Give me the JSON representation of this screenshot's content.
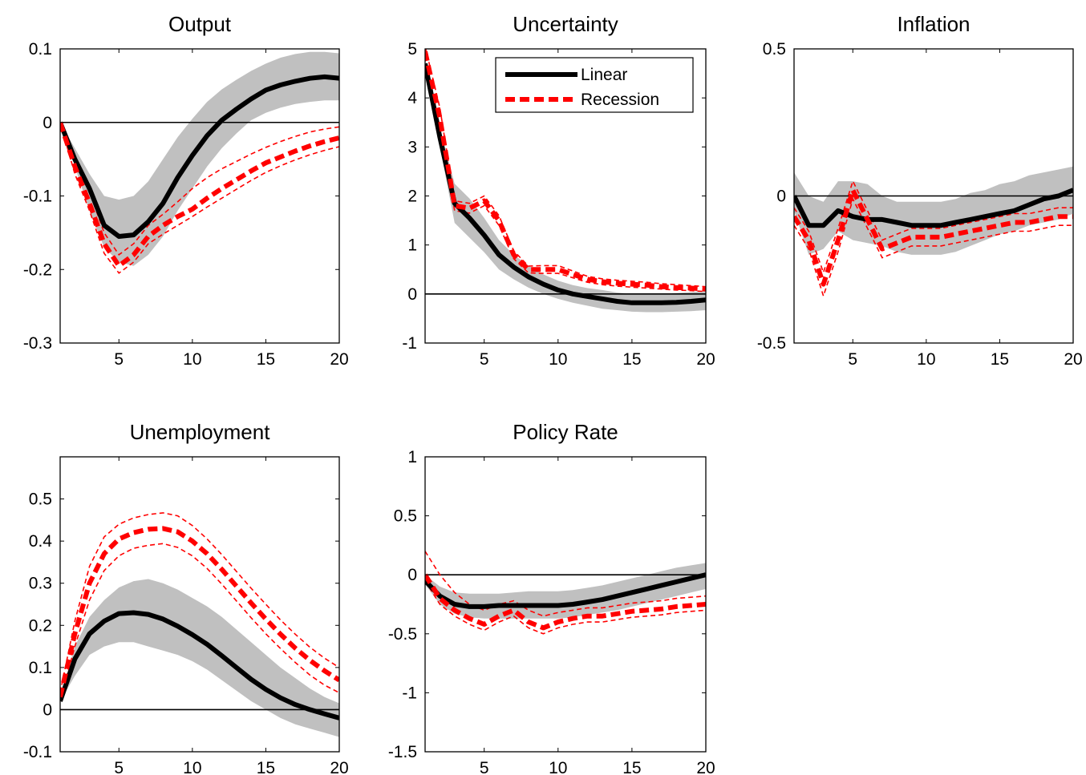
{
  "figure": {
    "legend_labels": [
      "Linear",
      "Recession"
    ],
    "colors": {
      "band": "#c0c0c0",
      "linear": "#000000",
      "recession": "#ff0000"
    }
  },
  "chart_data": [
    {
      "type": "line",
      "title": "Output",
      "x": [
        1,
        2,
        3,
        4,
        5,
        6,
        7,
        8,
        9,
        10,
        11,
        12,
        13,
        14,
        15,
        16,
        17,
        18,
        19,
        20
      ],
      "xlim": [
        1,
        20
      ],
      "ylim": [
        -0.3,
        0.1
      ],
      "xticks": [
        5,
        10,
        15,
        20
      ],
      "yticks": [
        -0.3,
        -0.2,
        -0.1,
        0,
        0.1
      ],
      "ytick_labels": [
        "-0.3",
        "-0.2",
        "-0.1",
        "0",
        "0.1"
      ],
      "legend": false,
      "series": [
        {
          "name": "Linear",
          "style": "solid",
          "values": [
            0.0,
            -0.05,
            -0.09,
            -0.14,
            -0.155,
            -0.153,
            -0.135,
            -0.11,
            -0.075,
            -0.045,
            -0.018,
            0.003,
            0.018,
            0.032,
            0.044,
            0.051,
            0.056,
            0.06,
            0.062,
            0.06
          ],
          "band_lower": [
            0.0,
            -0.06,
            -0.12,
            -0.17,
            -0.19,
            -0.195,
            -0.18,
            -0.155,
            -0.12,
            -0.09,
            -0.06,
            -0.035,
            -0.015,
            0.003,
            0.013,
            0.02,
            0.025,
            0.028,
            0.03,
            0.03
          ],
          "band_upper": [
            0.0,
            -0.035,
            -0.07,
            -0.1,
            -0.105,
            -0.1,
            -0.08,
            -0.05,
            -0.02,
            0.005,
            0.028,
            0.045,
            0.058,
            0.07,
            0.08,
            0.088,
            0.093,
            0.096,
            0.096,
            0.094
          ]
        },
        {
          "name": "Recession",
          "style": "dashed",
          "values": [
            0.0,
            -0.06,
            -0.11,
            -0.165,
            -0.195,
            -0.18,
            -0.155,
            -0.14,
            -0.128,
            -0.118,
            -0.103,
            -0.09,
            -0.078,
            -0.066,
            -0.055,
            -0.047,
            -0.039,
            -0.032,
            -0.026,
            -0.021
          ],
          "band_lower": [
            0.0,
            -0.07,
            -0.12,
            -0.178,
            -0.205,
            -0.19,
            -0.165,
            -0.152,
            -0.14,
            -0.128,
            -0.115,
            -0.103,
            -0.091,
            -0.079,
            -0.068,
            -0.059,
            -0.051,
            -0.044,
            -0.038,
            -0.033
          ],
          "band_upper": [
            0.0,
            -0.05,
            -0.095,
            -0.15,
            -0.18,
            -0.165,
            -0.14,
            -0.125,
            -0.108,
            -0.09,
            -0.075,
            -0.063,
            -0.053,
            -0.043,
            -0.034,
            -0.026,
            -0.019,
            -0.013,
            -0.009,
            -0.006
          ]
        }
      ]
    },
    {
      "type": "line",
      "title": "Uncertainty",
      "x": [
        1,
        2,
        3,
        4,
        5,
        6,
        7,
        8,
        9,
        10,
        11,
        12,
        13,
        14,
        15,
        16,
        17,
        18,
        19,
        20
      ],
      "xlim": [
        1,
        20
      ],
      "ylim": [
        -1,
        5
      ],
      "xticks": [
        5,
        10,
        15,
        20
      ],
      "yticks": [
        -1,
        0,
        1,
        2,
        3,
        4,
        5
      ],
      "ytick_labels": [
        "-1",
        "0",
        "1",
        "2",
        "3",
        "4",
        "5"
      ],
      "legend": true,
      "series": [
        {
          "name": "Linear",
          "style": "solid",
          "values": [
            4.7,
            3.2,
            1.85,
            1.55,
            1.2,
            0.8,
            0.55,
            0.35,
            0.2,
            0.08,
            0.0,
            -0.05,
            -0.1,
            -0.15,
            -0.18,
            -0.18,
            -0.18,
            -0.17,
            -0.15,
            -0.12
          ],
          "band_lower": [
            4.7,
            3.0,
            1.45,
            1.15,
            0.85,
            0.5,
            0.3,
            0.13,
            0.0,
            -0.1,
            -0.18,
            -0.24,
            -0.3,
            -0.33,
            -0.36,
            -0.37,
            -0.37,
            -0.36,
            -0.35,
            -0.33
          ],
          "band_upper": [
            4.7,
            3.4,
            2.25,
            1.95,
            1.55,
            1.1,
            0.8,
            0.58,
            0.4,
            0.27,
            0.18,
            0.12,
            0.08,
            0.03,
            0.0,
            0.0,
            0.0,
            0.02,
            0.04,
            0.07
          ]
        },
        {
          "name": "Recession",
          "style": "dashed",
          "values": [
            4.95,
            3.6,
            1.8,
            1.75,
            1.9,
            1.5,
            0.8,
            0.5,
            0.5,
            0.5,
            0.4,
            0.3,
            0.25,
            0.22,
            0.2,
            0.18,
            0.15,
            0.13,
            0.12,
            0.1
          ],
          "band_lower": [
            4.85,
            3.4,
            1.7,
            1.65,
            1.8,
            1.4,
            0.72,
            0.43,
            0.42,
            0.42,
            0.33,
            0.24,
            0.19,
            0.16,
            0.14,
            0.12,
            0.1,
            0.08,
            0.07,
            0.05
          ],
          "band_upper": [
            5.05,
            3.8,
            1.9,
            1.85,
            2.0,
            1.6,
            0.88,
            0.57,
            0.58,
            0.58,
            0.47,
            0.36,
            0.31,
            0.28,
            0.26,
            0.24,
            0.21,
            0.19,
            0.17,
            0.15
          ]
        }
      ]
    },
    {
      "type": "line",
      "title": "Inflation",
      "x": [
        1,
        2,
        3,
        4,
        5,
        6,
        7,
        8,
        9,
        10,
        11,
        12,
        13,
        14,
        15,
        16,
        17,
        18,
        19,
        20
      ],
      "xlim": [
        1,
        20
      ],
      "ylim": [
        -0.5,
        0.5
      ],
      "xticks": [
        5,
        10,
        15,
        20
      ],
      "yticks": [
        -0.5,
        0,
        0.5
      ],
      "ytick_labels": [
        "-0.5",
        "0",
        "0.5"
      ],
      "legend": false,
      "series": [
        {
          "name": "Linear",
          "style": "solid",
          "values": [
            0.0,
            -0.1,
            -0.1,
            -0.05,
            -0.07,
            -0.08,
            -0.08,
            -0.09,
            -0.1,
            -0.1,
            -0.1,
            -0.09,
            -0.08,
            -0.07,
            -0.06,
            -0.05,
            -0.03,
            -0.01,
            0.0,
            0.02
          ],
          "band_lower": [
            -0.05,
            -0.2,
            -0.18,
            -0.12,
            -0.15,
            -0.16,
            -0.17,
            -0.19,
            -0.2,
            -0.2,
            -0.2,
            -0.19,
            -0.17,
            -0.15,
            -0.13,
            -0.12,
            -0.1,
            -0.09,
            -0.08,
            -0.06
          ],
          "band_upper": [
            0.08,
            0.0,
            -0.02,
            0.05,
            0.05,
            0.04,
            0.0,
            -0.02,
            -0.02,
            -0.02,
            -0.02,
            -0.01,
            0.01,
            0.02,
            0.04,
            0.05,
            0.07,
            0.08,
            0.09,
            0.1
          ]
        },
        {
          "name": "Recession",
          "style": "dashed",
          "values": [
            -0.07,
            -0.15,
            -0.3,
            -0.15,
            0.02,
            -0.08,
            -0.18,
            -0.16,
            -0.14,
            -0.14,
            -0.14,
            -0.13,
            -0.12,
            -0.11,
            -0.1,
            -0.09,
            -0.09,
            -0.08,
            -0.07,
            -0.07
          ],
          "band_lower": [
            -0.1,
            -0.18,
            -0.34,
            -0.19,
            -0.01,
            -0.11,
            -0.21,
            -0.19,
            -0.17,
            -0.17,
            -0.17,
            -0.16,
            -0.15,
            -0.14,
            -0.13,
            -0.12,
            -0.12,
            -0.11,
            -0.1,
            -0.1
          ],
          "band_upper": [
            -0.04,
            -0.12,
            -0.26,
            -0.11,
            0.05,
            -0.05,
            -0.15,
            -0.13,
            -0.11,
            -0.11,
            -0.11,
            -0.1,
            -0.09,
            -0.08,
            -0.07,
            -0.06,
            -0.06,
            -0.05,
            -0.04,
            -0.04
          ]
        }
      ]
    },
    {
      "type": "line",
      "title": "Unemployment",
      "x": [
        1,
        2,
        3,
        4,
        5,
        6,
        7,
        8,
        9,
        10,
        11,
        12,
        13,
        14,
        15,
        16,
        17,
        18,
        19,
        20
      ],
      "xlim": [
        1,
        20
      ],
      "ylim": [
        -0.1,
        0.6
      ],
      "xticks": [
        5,
        10,
        15,
        20
      ],
      "yticks": [
        -0.1,
        0,
        0.1,
        0.2,
        0.3,
        0.4,
        0.5
      ],
      "ytick_labels": [
        "-0.1",
        "0",
        "0.1",
        "0.2",
        "0.3",
        "0.4",
        "0.5"
      ],
      "legend": false,
      "series": [
        {
          "name": "Linear",
          "style": "solid",
          "values": [
            0.02,
            0.12,
            0.18,
            0.21,
            0.228,
            0.23,
            0.226,
            0.215,
            0.198,
            0.178,
            0.155,
            0.128,
            0.1,
            0.072,
            0.048,
            0.028,
            0.012,
            0.0,
            -0.01,
            -0.02
          ],
          "band_lower": [
            0.02,
            0.08,
            0.13,
            0.15,
            0.16,
            0.16,
            0.15,
            0.14,
            0.13,
            0.115,
            0.095,
            0.07,
            0.045,
            0.02,
            0.0,
            -0.02,
            -0.035,
            -0.045,
            -0.055,
            -0.065
          ],
          "band_upper": [
            0.03,
            0.15,
            0.22,
            0.26,
            0.29,
            0.305,
            0.31,
            0.3,
            0.285,
            0.265,
            0.245,
            0.22,
            0.19,
            0.16,
            0.13,
            0.1,
            0.075,
            0.05,
            0.03,
            0.015
          ]
        },
        {
          "name": "Recession",
          "style": "dashed",
          "values": [
            0.03,
            0.18,
            0.3,
            0.37,
            0.405,
            0.42,
            0.428,
            0.43,
            0.422,
            0.4,
            0.37,
            0.333,
            0.293,
            0.253,
            0.215,
            0.179,
            0.146,
            0.117,
            0.092,
            0.07
          ],
          "band_lower": [
            0.02,
            0.15,
            0.26,
            0.33,
            0.365,
            0.383,
            0.39,
            0.394,
            0.385,
            0.365,
            0.335,
            0.298,
            0.258,
            0.218,
            0.18,
            0.145,
            0.112,
            0.082,
            0.058,
            0.04
          ],
          "band_upper": [
            0.04,
            0.21,
            0.34,
            0.41,
            0.44,
            0.455,
            0.463,
            0.467,
            0.46,
            0.437,
            0.405,
            0.368,
            0.328,
            0.288,
            0.25,
            0.213,
            0.179,
            0.148,
            0.122,
            0.1
          ]
        }
      ]
    },
    {
      "type": "line",
      "title": "Policy Rate",
      "x": [
        1,
        2,
        3,
        4,
        5,
        6,
        7,
        8,
        9,
        10,
        11,
        12,
        13,
        14,
        15,
        16,
        17,
        18,
        19,
        20
      ],
      "xlim": [
        1,
        20
      ],
      "ylim": [
        -1.5,
        1
      ],
      "xticks": [
        5,
        10,
        15,
        20
      ],
      "yticks": [
        -1.5,
        -1,
        -0.5,
        0,
        0.5,
        1
      ],
      "ytick_labels": [
        "-1.5",
        "-1",
        "-0.5",
        "0",
        "0.5",
        "1"
      ],
      "legend": false,
      "series": [
        {
          "name": "Linear",
          "style": "solid",
          "values": [
            -0.05,
            -0.18,
            -0.25,
            -0.27,
            -0.27,
            -0.26,
            -0.26,
            -0.26,
            -0.26,
            -0.26,
            -0.25,
            -0.23,
            -0.21,
            -0.18,
            -0.15,
            -0.12,
            -0.09,
            -0.06,
            -0.03,
            0.0
          ],
          "band_lower": [
            -0.08,
            -0.25,
            -0.33,
            -0.36,
            -0.37,
            -0.37,
            -0.37,
            -0.37,
            -0.37,
            -0.37,
            -0.36,
            -0.34,
            -0.32,
            -0.3,
            -0.27,
            -0.24,
            -0.21,
            -0.18,
            -0.15,
            -0.12
          ],
          "band_upper": [
            0.0,
            -0.1,
            -0.15,
            -0.16,
            -0.16,
            -0.16,
            -0.15,
            -0.14,
            -0.14,
            -0.14,
            -0.13,
            -0.11,
            -0.09,
            -0.06,
            -0.03,
            0.0,
            0.03,
            0.06,
            0.08,
            0.1
          ]
        },
        {
          "name": "Recession",
          "style": "dashed",
          "values": [
            0.0,
            -0.2,
            -0.3,
            -0.37,
            -0.42,
            -0.35,
            -0.3,
            -0.4,
            -0.45,
            -0.4,
            -0.37,
            -0.35,
            -0.35,
            -0.33,
            -0.31,
            -0.3,
            -0.29,
            -0.27,
            -0.26,
            -0.25
          ],
          "band_lower": [
            -0.05,
            -0.25,
            -0.35,
            -0.42,
            -0.47,
            -0.4,
            -0.35,
            -0.45,
            -0.5,
            -0.45,
            -0.42,
            -0.4,
            -0.4,
            -0.38,
            -0.36,
            -0.35,
            -0.34,
            -0.32,
            -0.31,
            -0.3
          ],
          "band_upper": [
            0.2,
            0.0,
            -0.15,
            -0.25,
            -0.3,
            -0.25,
            -0.22,
            -0.3,
            -0.35,
            -0.32,
            -0.3,
            -0.28,
            -0.28,
            -0.26,
            -0.24,
            -0.23,
            -0.22,
            -0.2,
            -0.19,
            -0.18
          ]
        }
      ]
    }
  ]
}
